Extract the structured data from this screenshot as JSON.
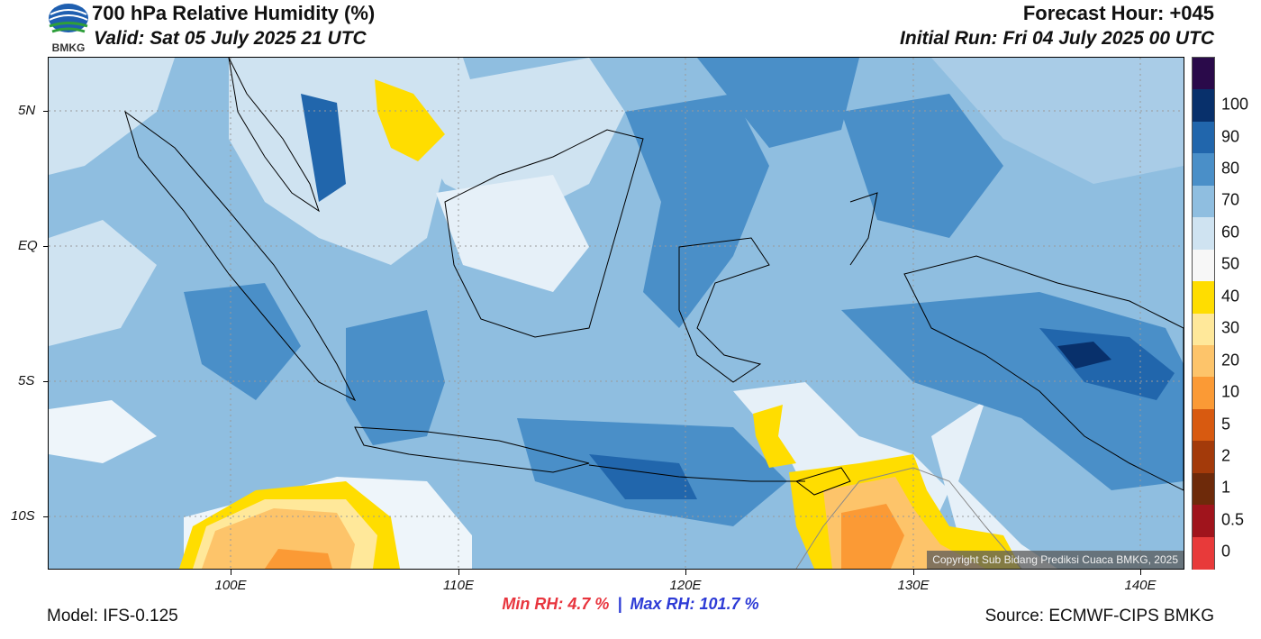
{
  "header": {
    "title": "700 hPa Relative Humidity (%)",
    "valid": "Valid: Sat 05 July 2025 21 UTC",
    "forecast_hour": "Forecast Hour: +045",
    "initial_run": "Initial Run: Fri 04 July 2025 00 UTC",
    "logo_text": "BMKG"
  },
  "map": {
    "lon_range": [
      92,
      142
    ],
    "lat_range": [
      -12,
      7
    ],
    "lat_ticks": [
      {
        "lat": 5,
        "label": "5N"
      },
      {
        "lat": 0,
        "label": "EQ"
      },
      {
        "lat": -5,
        "label": "5S"
      },
      {
        "lat": -10,
        "label": "10S"
      }
    ],
    "lon_ticks": [
      {
        "lon": 100,
        "label": "100E"
      },
      {
        "lon": 110,
        "label": "110E"
      },
      {
        "lon": 120,
        "label": "120E"
      },
      {
        "lon": 130,
        "label": "130E"
      },
      {
        "lon": 140,
        "label": "140E"
      }
    ],
    "copyright": "Copyright Sub Bidang Prediksi Cuaca BMKG, 2025"
  },
  "colorbar": {
    "levels": [
      {
        "label": "",
        "color": "#2a0a4a"
      },
      {
        "label": "100",
        "color": "#08306b"
      },
      {
        "label": "90",
        "color": "#2166ac"
      },
      {
        "label": "80",
        "color": "#4a8fc8"
      },
      {
        "label": "70",
        "color": "#8fbee0"
      },
      {
        "label": "60",
        "color": "#cfe3f1"
      },
      {
        "label": "50",
        "color": "#f7f7f7"
      },
      {
        "label": "40",
        "color": "#ffdd00"
      },
      {
        "label": "30",
        "color": "#ffe89a"
      },
      {
        "label": "20",
        "color": "#fdc46a"
      },
      {
        "label": "10",
        "color": "#fb9a35"
      },
      {
        "label": "5",
        "color": "#d85a10"
      },
      {
        "label": "2",
        "color": "#a33a0a"
      },
      {
        "label": "1",
        "color": "#6e2a0a"
      },
      {
        "label": "0.5",
        "color": "#a0141c"
      },
      {
        "label": "0",
        "color": "#e83a3a"
      }
    ]
  },
  "footer": {
    "min_rh_label": "Min RH:",
    "min_rh_value": "4.7 %",
    "separator": "|",
    "max_rh_label": "Max RH:",
    "max_rh_value": "101.7 %",
    "model": "Model: IFS-0.125",
    "source": "Source: ECMWF-CIPS BMKG"
  }
}
